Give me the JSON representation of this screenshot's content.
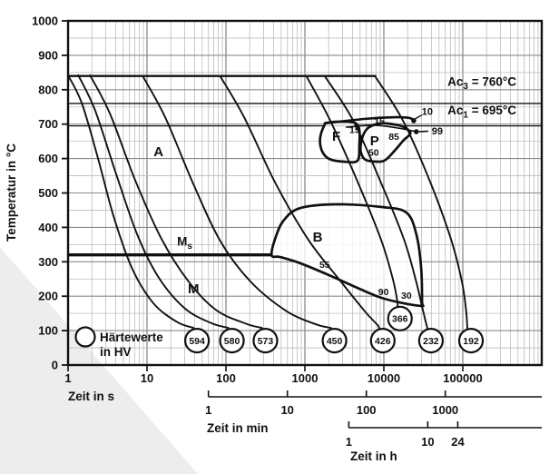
{
  "chart_data": {
    "type": "line",
    "y_axis": {
      "label": "Temperatur in °C",
      "min": 0,
      "max": 1000,
      "major_step": 100,
      "minor_step": 50,
      "tick_labels": [
        0,
        100,
        200,
        300,
        400,
        500,
        600,
        700,
        800,
        900,
        1000
      ]
    },
    "x_axes": [
      {
        "id": "s",
        "label": "Zeit in s",
        "scale": "log",
        "range": [
          1,
          1000000
        ],
        "unit_seconds": 1,
        "tick_labels": [
          1,
          10,
          100,
          1000,
          10000,
          100000
        ]
      },
      {
        "id": "min",
        "label": "Zeit in min",
        "scale": "log",
        "unit_seconds": 60,
        "tick_labels": [
          1,
          10,
          100,
          1000
        ]
      },
      {
        "id": "h",
        "label": "Zeit in h",
        "scale": "log",
        "unit_seconds": 3600,
        "tick_labels": [
          1,
          10,
          24
        ]
      }
    ],
    "reference_lines": [
      {
        "name": "Ac3",
        "temp": 760,
        "t_range": [
          1,
          1000000
        ],
        "label": {
          "prefix": "Ac",
          "sub": "3",
          "rest": " = 760°C"
        },
        "label_pos": [
          64000,
          812
        ]
      },
      {
        "name": "Ac1",
        "temp": 695,
        "t_range": [
          1,
          1000000
        ],
        "label": {
          "prefix": "Ac",
          "sub": "1",
          "rest": " = 695°C"
        },
        "label_pos": [
          64000,
          728
        ]
      },
      {
        "name": "austenitizing",
        "temp": 840,
        "t_range": [
          1,
          8000
        ],
        "label": null
      },
      {
        "name": "Ms",
        "temp": 320,
        "t_range": [
          1,
          390
        ],
        "thick": true,
        "label": {
          "prefix": "M",
          "sub": "s",
          "rest": ""
        },
        "label_pos": [
          24,
          347
        ]
      }
    ],
    "phase_labels": [
      {
        "text": "A",
        "pos": [
          14,
          620
        ]
      },
      {
        "text": "M",
        "pos": [
          38.8,
          222
        ]
      }
    ],
    "phase_regions": [
      {
        "name": "F",
        "label_pos": [
          2500,
          665
        ],
        "outline": [
          [
            1780,
            699
          ],
          [
            1560,
            660
          ],
          [
            1640,
            623
          ],
          [
            2030,
            599
          ],
          [
            3100,
            591
          ],
          [
            4640,
            594
          ],
          [
            4890,
            639
          ],
          [
            4890,
            683
          ],
          [
            4260,
            704
          ],
          [
            2700,
            707
          ],
          [
            1930,
            704
          ]
        ]
      },
      {
        "name": "P",
        "label_pos": [
          7620,
          652
        ],
        "outline": [
          [
            5600,
            673
          ],
          [
            5130,
            644
          ],
          [
            5130,
            617
          ],
          [
            5890,
            596
          ],
          [
            8250,
            591
          ],
          [
            10500,
            596
          ],
          [
            13700,
            623
          ],
          [
            17900,
            654
          ],
          [
            21700,
            673
          ],
          [
            18800,
            689
          ],
          [
            13700,
            699
          ],
          [
            8970,
            702
          ],
          [
            6500,
            691
          ]
        ]
      },
      {
        "name": "B",
        "label_pos": [
          1450,
          372
        ],
        "outline": [
          [
            380,
            319
          ],
          [
            423,
            369
          ],
          [
            538,
            420
          ],
          [
            869,
            456
          ],
          [
            2500,
            467
          ],
          [
            9440,
            459
          ],
          [
            19300,
            443
          ],
          [
            25800,
            380
          ],
          [
            29700,
            282
          ],
          [
            30500,
            185
          ],
          [
            30400,
            172
          ],
          [
            18300,
            179
          ],
          [
            9440,
            195
          ],
          [
            4860,
            222
          ],
          [
            2030,
            261
          ],
          [
            869,
            296
          ],
          [
            483,
            314
          ]
        ]
      }
    ],
    "transformation_lines": [
      {
        "weight": "thick",
        "points": [
          [
            1780,
            702
          ],
          [
            5600,
            715
          ],
          [
            14100,
            720
          ],
          [
            21100,
            718
          ],
          [
            24300,
            710
          ]
        ]
      },
      {
        "weight": "medium",
        "points": [
          [
            3370,
            691
          ],
          [
            7300,
            697
          ],
          [
            14900,
            689
          ],
          [
            22300,
            681
          ],
          [
            26200,
            678
          ]
        ]
      }
    ],
    "markers": [
      {
        "text": "10",
        "dot": [
          23900,
          710
        ],
        "label_pos": [
          35500,
          737
        ],
        "connector": "diagonal"
      },
      {
        "text": "99",
        "dot": [
          25800,
          678
        ],
        "label_pos": [
          47500,
          681
        ],
        "connector": "dash"
      }
    ],
    "percent_labels": [
      {
        "text": "15",
        "pos": [
          4270,
          684
        ]
      },
      {
        "text": "15",
        "pos": [
          8800,
          708
        ]
      },
      {
        "text": "85",
        "pos": [
          13400,
          663
        ]
      },
      {
        "text": "50",
        "pos": [
          7440,
          617
        ]
      },
      {
        "text": "55",
        "pos": [
          1780,
          292
        ]
      },
      {
        "text": "90",
        "pos": [
          9900,
          213
        ]
      },
      {
        "text": "30",
        "pos": [
          19300,
          202
        ]
      }
    ],
    "cooling_curves": [
      {
        "hardness_hv": "594",
        "circle": [
          43,
          71
        ],
        "points": [
          [
            1,
            842
          ],
          [
            1.5,
            760
          ],
          [
            2.4,
            600
          ],
          [
            3.8,
            430
          ],
          [
            6.5,
            280
          ],
          [
            12,
            180
          ],
          [
            24,
            125
          ],
          [
            39,
            108
          ]
        ]
      },
      {
        "hardness_hv": "580",
        "circle": [
          119,
          71
        ],
        "points": [
          [
            1.35,
            842
          ],
          [
            2.2,
            740
          ],
          [
            4,
            560
          ],
          [
            7.5,
            380
          ],
          [
            14,
            255
          ],
          [
            30,
            165
          ],
          [
            65,
            122
          ],
          [
            107,
            108
          ]
        ]
      },
      {
        "hardness_hv": "573",
        "circle": [
          316,
          71
        ],
        "points": [
          [
            1.9,
            842
          ],
          [
            3.4,
            730
          ],
          [
            7,
            540
          ],
          [
            15,
            370
          ],
          [
            33,
            245
          ],
          [
            75,
            160
          ],
          [
            180,
            120
          ],
          [
            285,
            108
          ]
        ]
      },
      {
        "hardness_hv": "450",
        "circle": [
          2370,
          71
        ],
        "points": [
          [
            8.8,
            840
          ],
          [
            17,
            720
          ],
          [
            38,
            530
          ],
          [
            85,
            360
          ],
          [
            210,
            240
          ],
          [
            600,
            155
          ],
          [
            1400,
            118
          ],
          [
            2130,
            108
          ]
        ]
      },
      {
        "hardness_hv": "426",
        "circle": [
          9690,
          71
        ],
        "points": [
          [
            84,
            840
          ],
          [
            170,
            720
          ],
          [
            420,
            530
          ],
          [
            1100,
            365
          ],
          [
            2800,
            245
          ],
          [
            5800,
            155
          ],
          [
            8200,
            118
          ],
          [
            8700,
            108
          ]
        ]
      },
      {
        "hardness_hv": "366",
        "circle": [
          16000,
          135
        ],
        "points": [
          [
            1040,
            840
          ],
          [
            2100,
            710
          ],
          [
            4700,
            530
          ],
          [
            9200,
            365
          ],
          [
            13000,
            250
          ],
          [
            14800,
            186
          ],
          [
            14900,
            172
          ]
        ]
      },
      {
        "hardness_hv": "232",
        "circle": [
          39500,
          71
        ],
        "points": [
          [
            1780,
            840
          ],
          [
            4100,
            710
          ],
          [
            9200,
            530
          ],
          [
            18000,
            365
          ],
          [
            25500,
            245
          ],
          [
            30500,
            170
          ],
          [
            34000,
            125
          ],
          [
            35500,
            108
          ]
        ]
      },
      {
        "hardness_hv": "192",
        "circle": [
          127000,
          71
        ],
        "points": [
          [
            7800,
            838
          ],
          [
            17500,
            710
          ],
          [
            39000,
            530
          ],
          [
            71000,
            365
          ],
          [
            97000,
            245
          ],
          [
            110000,
            160
          ],
          [
            114000,
            108
          ]
        ]
      }
    ],
    "legend": {
      "symbol": "circle",
      "line1": "Härtewerte",
      "line2": "in HV"
    },
    "hardness_values": [
      "594",
      "580",
      "573",
      "450",
      "426",
      "366",
      "232",
      "192"
    ]
  }
}
